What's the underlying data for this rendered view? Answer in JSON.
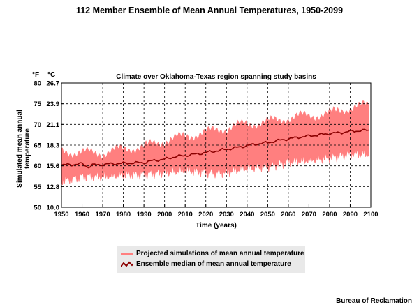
{
  "figure": {
    "title": "112 Member Ensemble of Mean Annual Temperatures, 1950-2099",
    "credit": "Bureau of Reclamation"
  },
  "colors": {
    "band": "#ff7f7f",
    "median": "#8b0000",
    "grid": "#000000",
    "legend_bg": "#e9e9e9"
  },
  "chart_data": {
    "type": "area",
    "title": "Climate over Oklahoma-Texas region spanning study basins",
    "xlabel": "Time (years)",
    "ylabel": "Simulated mean annual temperature",
    "xlim": [
      1950,
      2100
    ],
    "ylim": [
      50,
      80
    ],
    "x_ticks": [
      "1950",
      "1960",
      "1970",
      "1980",
      "1990",
      "2000",
      "2010",
      "2020",
      "2030",
      "2040",
      "2050",
      "2060",
      "2070",
      "2080",
      "2090",
      "2100"
    ],
    "y_ticks_f": [
      "80",
      "75",
      "70",
      "65",
      "60",
      "55",
      "50"
    ],
    "y_ticks_c": [
      "26.7",
      "23.9",
      "21.1",
      "18.3",
      "15.6",
      "12.8",
      "10.0"
    ],
    "y_unit_f": "°F",
    "y_unit_c": "°C",
    "grid": true,
    "legend_position": "bottom-center",
    "series": [
      {
        "name": "Projected simulations of mean annual temperature",
        "x": [
          1950,
          1960,
          1970,
          1980,
          1990,
          2000,
          2010,
          2020,
          2030,
          2040,
          2050,
          2060,
          2070,
          2080,
          2090,
          2099
        ],
        "lower": [
          56.5,
          57.5,
          57.5,
          58.0,
          58.0,
          58.5,
          59.0,
          58.5,
          58.5,
          59.5,
          60.0,
          61.0,
          61.5,
          62.0,
          63.0,
          63.0
        ],
        "upper": [
          63.5,
          63.0,
          63.0,
          64.0,
          64.5,
          66.0,
          67.0,
          68.0,
          69.0,
          70.0,
          70.5,
          71.5,
          72.0,
          72.5,
          74.0,
          74.5
        ]
      },
      {
        "name": "Ensemble median of mean annual temperature",
        "x": [
          1950,
          1955,
          1960,
          1963,
          1965,
          1970,
          1975,
          1980,
          1985,
          1990,
          1995,
          2000,
          2005,
          2010,
          2015,
          2020,
          2025,
          2030,
          2035,
          2040,
          2045,
          2050,
          2055,
          2060,
          2065,
          2070,
          2075,
          2080,
          2085,
          2090,
          2095,
          2099
        ],
        "values": [
          60.2,
          60.3,
          60.5,
          59.7,
          60.2,
          60.3,
          60.5,
          60.6,
          60.7,
          60.8,
          61.3,
          61.6,
          62.2,
          62.5,
          62.8,
          63.2,
          63.6,
          64.0,
          64.4,
          64.9,
          65.3,
          65.6,
          66.1,
          66.5,
          66.9,
          67.2,
          67.5,
          67.8,
          68.0,
          68.3,
          68.5,
          68.6
        ]
      }
    ]
  }
}
